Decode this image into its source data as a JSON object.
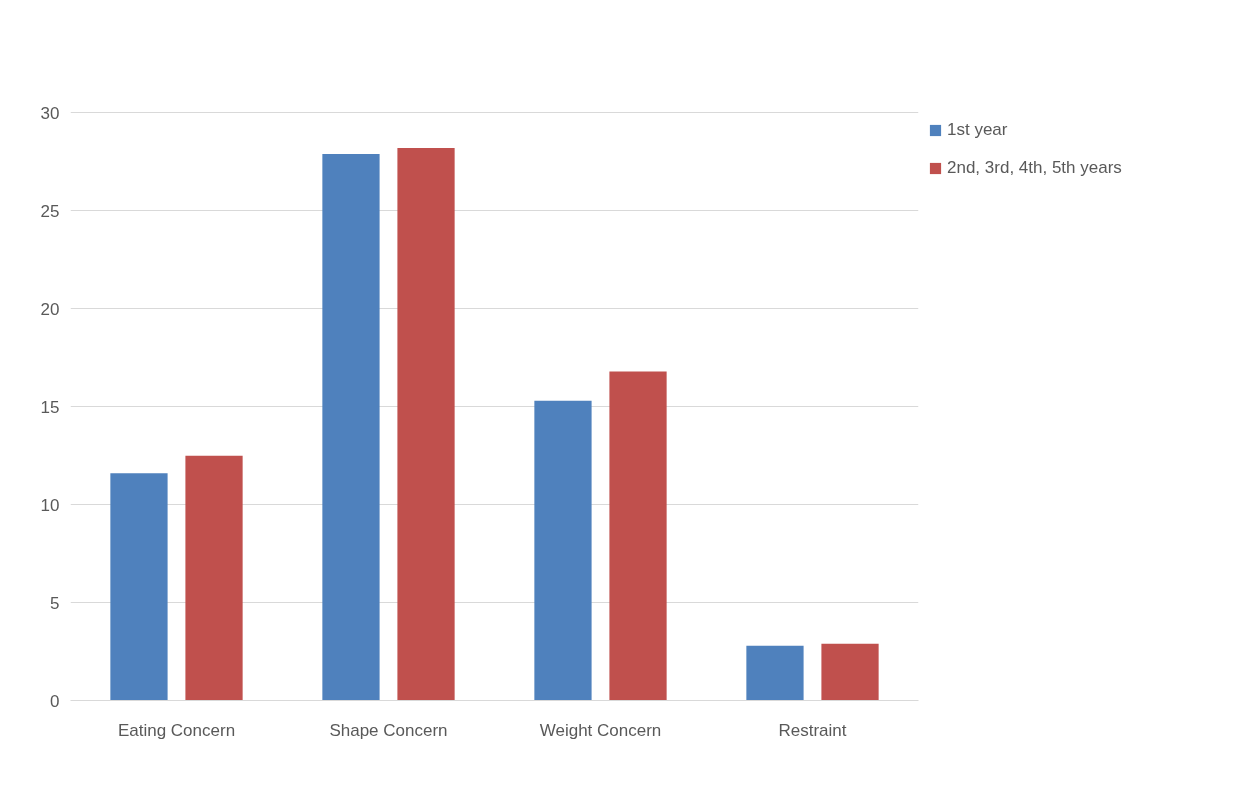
{
  "chart_data": {
    "type": "bar",
    "categories": [
      "Eating Concern",
      "Shape Concern",
      "Weight Concern",
      "Restraint"
    ],
    "series": [
      {
        "name": "1st year",
        "color": "#4f81bd",
        "values": [
          11.6,
          27.9,
          15.3,
          2.8
        ]
      },
      {
        "name": "2nd, 3rd, 4th, 5th years",
        "color": "#c0504d",
        "values": [
          12.5,
          28.2,
          16.8,
          2.9
        ]
      }
    ],
    "ylim": [
      0,
      30
    ],
    "yticks": [
      0,
      5,
      10,
      15,
      20,
      25,
      30
    ],
    "grid": "y",
    "legend": "top right"
  }
}
